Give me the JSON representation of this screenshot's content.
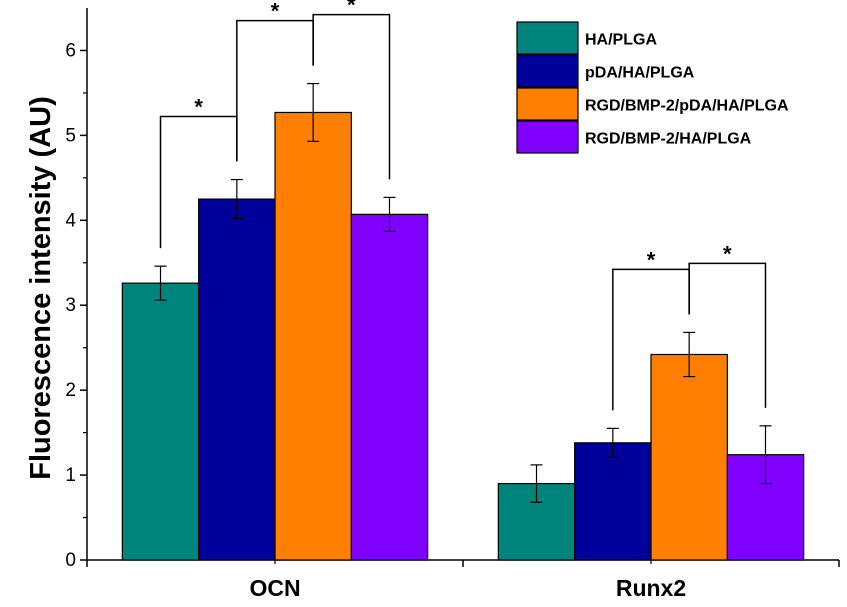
{
  "chart_data": {
    "type": "bar",
    "ylabel": "Fluorescence intensity (AU)",
    "xlabel": "",
    "ylim": [
      0,
      6.5
    ],
    "yticks": [
      0,
      1,
      2,
      3,
      4,
      5,
      6
    ],
    "grid": false,
    "legend_position": "top-right",
    "categories": [
      "OCN",
      "Runx2"
    ],
    "series": [
      {
        "name": "HA/PLGA",
        "color": "#00857d",
        "values": [
          3.26,
          0.9
        ],
        "errors": [
          0.2,
          0.22
        ]
      },
      {
        "name": "pDA/HA/PLGA",
        "color": "#00009a",
        "values": [
          4.25,
          1.38
        ],
        "errors": [
          0.23,
          0.17
        ]
      },
      {
        "name": "RGD/BMP-2/pDA/HA/PLGA",
        "color": "#ff8000",
        "values": [
          5.27,
          2.42
        ],
        "errors": [
          0.34,
          0.26
        ]
      },
      {
        "name": "RGD/BMP-2/HA/PLGA",
        "color": "#8000ff",
        "values": [
          4.07,
          1.24
        ],
        "errors": [
          0.2,
          0.34
        ]
      }
    ],
    "significance": [
      {
        "category": 0,
        "from": 0,
        "to": 1,
        "label": "*"
      },
      {
        "category": 0,
        "from": 1,
        "to": 2,
        "label": "*"
      },
      {
        "category": 0,
        "from": 2,
        "to": 3,
        "label": "*"
      },
      {
        "category": 1,
        "from": 1,
        "to": 2,
        "label": "*"
      },
      {
        "category": 1,
        "from": 2,
        "to": 3,
        "label": "*"
      }
    ]
  }
}
